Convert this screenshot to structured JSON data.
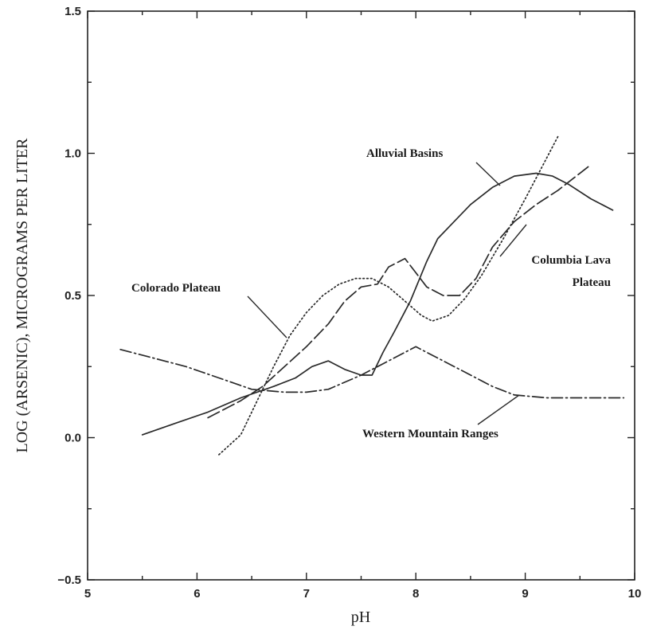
{
  "chart_data": {
    "type": "line",
    "xlabel": "pH",
    "ylabel": "LOG (ARSENIC), MICROGRAMS PER LITER",
    "xlim": [
      5,
      10
    ],
    "ylim": [
      -0.5,
      1.5
    ],
    "x_ticks": [
      5,
      6,
      7,
      8,
      9,
      10
    ],
    "y_ticks": [
      -0.5,
      0.0,
      0.5,
      1.0,
      1.5
    ],
    "x_tick_labels": [
      "5",
      "6",
      "7",
      "8",
      "9",
      "10"
    ],
    "y_tick_labels": [
      "−0.5",
      "0.0",
      "0.5",
      "1.0",
      "1.5"
    ],
    "grid": false,
    "legend": "none",
    "series": [
      {
        "name": "Alluvial Basins",
        "dash": "solid",
        "points": [
          [
            5.5,
            0.01
          ],
          [
            5.8,
            0.05
          ],
          [
            6.1,
            0.09
          ],
          [
            6.4,
            0.14
          ],
          [
            6.7,
            0.18
          ],
          [
            6.9,
            0.21
          ],
          [
            7.05,
            0.25
          ],
          [
            7.2,
            0.27
          ],
          [
            7.35,
            0.24
          ],
          [
            7.5,
            0.22
          ],
          [
            7.6,
            0.22
          ],
          [
            7.7,
            0.3
          ],
          [
            7.8,
            0.37
          ],
          [
            7.95,
            0.48
          ],
          [
            8.1,
            0.62
          ],
          [
            8.2,
            0.7
          ],
          [
            8.35,
            0.76
          ],
          [
            8.5,
            0.82
          ],
          [
            8.7,
            0.88
          ],
          [
            8.9,
            0.92
          ],
          [
            9.1,
            0.93
          ],
          [
            9.25,
            0.92
          ],
          [
            9.4,
            0.89
          ],
          [
            9.6,
            0.84
          ],
          [
            9.8,
            0.8
          ]
        ]
      },
      {
        "name": "Colorado Plateau",
        "dash": "long-dash",
        "points": [
          [
            6.1,
            0.07
          ],
          [
            6.4,
            0.13
          ],
          [
            6.6,
            0.18
          ],
          [
            6.8,
            0.25
          ],
          [
            7.0,
            0.32
          ],
          [
            7.2,
            0.4
          ],
          [
            7.35,
            0.48
          ],
          [
            7.5,
            0.53
          ],
          [
            7.65,
            0.54
          ],
          [
            7.75,
            0.6
          ],
          [
            7.9,
            0.63
          ],
          [
            8.0,
            0.58
          ],
          [
            8.1,
            0.53
          ],
          [
            8.25,
            0.5
          ],
          [
            8.4,
            0.5
          ],
          [
            8.55,
            0.56
          ],
          [
            8.7,
            0.67
          ],
          [
            8.9,
            0.76
          ],
          [
            9.1,
            0.82
          ],
          [
            9.3,
            0.87
          ],
          [
            9.6,
            0.96
          ]
        ]
      },
      {
        "name": "Columbia Lava Plateau",
        "dash": "dotted",
        "points": [
          [
            6.2,
            -0.06
          ],
          [
            6.4,
            0.01
          ],
          [
            6.55,
            0.13
          ],
          [
            6.7,
            0.25
          ],
          [
            6.85,
            0.36
          ],
          [
            7.0,
            0.44
          ],
          [
            7.15,
            0.5
          ],
          [
            7.3,
            0.54
          ],
          [
            7.45,
            0.56
          ],
          [
            7.6,
            0.56
          ],
          [
            7.75,
            0.53
          ],
          [
            7.9,
            0.48
          ],
          [
            8.05,
            0.43
          ],
          [
            8.15,
            0.41
          ],
          [
            8.3,
            0.43
          ],
          [
            8.45,
            0.49
          ],
          [
            8.6,
            0.57
          ],
          [
            8.8,
            0.7
          ],
          [
            9.0,
            0.84
          ],
          [
            9.15,
            0.95
          ],
          [
            9.3,
            1.06
          ]
        ]
      },
      {
        "name": "Western Mountain Ranges",
        "dash": "dash-dot",
        "points": [
          [
            5.3,
            0.31
          ],
          [
            5.6,
            0.28
          ],
          [
            5.9,
            0.25
          ],
          [
            6.2,
            0.21
          ],
          [
            6.5,
            0.17
          ],
          [
            6.8,
            0.16
          ],
          [
            7.0,
            0.16
          ],
          [
            7.2,
            0.17
          ],
          [
            7.5,
            0.22
          ],
          [
            7.7,
            0.26
          ],
          [
            7.9,
            0.3
          ],
          [
            8.0,
            0.32
          ],
          [
            8.15,
            0.29
          ],
          [
            8.4,
            0.24
          ],
          [
            8.7,
            0.18
          ],
          [
            8.9,
            0.15
          ],
          [
            9.2,
            0.14
          ],
          [
            9.6,
            0.14
          ],
          [
            9.9,
            0.14
          ]
        ]
      }
    ],
    "annotations": [
      {
        "id": "alluvial",
        "text": "Alluvial Basins",
        "lines": [
          "Alluvial Basins"
        ]
      },
      {
        "id": "colorado",
        "text": "Colorado Plateau",
        "lines": [
          "Colorado Plateau"
        ]
      },
      {
        "id": "columbia",
        "text": "Columbia Lava Plateau",
        "lines": [
          "Columbia Lava",
          "Plateau"
        ]
      },
      {
        "id": "western",
        "text": "Western Mountain Ranges",
        "lines": [
          "Western Mountain Ranges"
        ]
      }
    ]
  }
}
